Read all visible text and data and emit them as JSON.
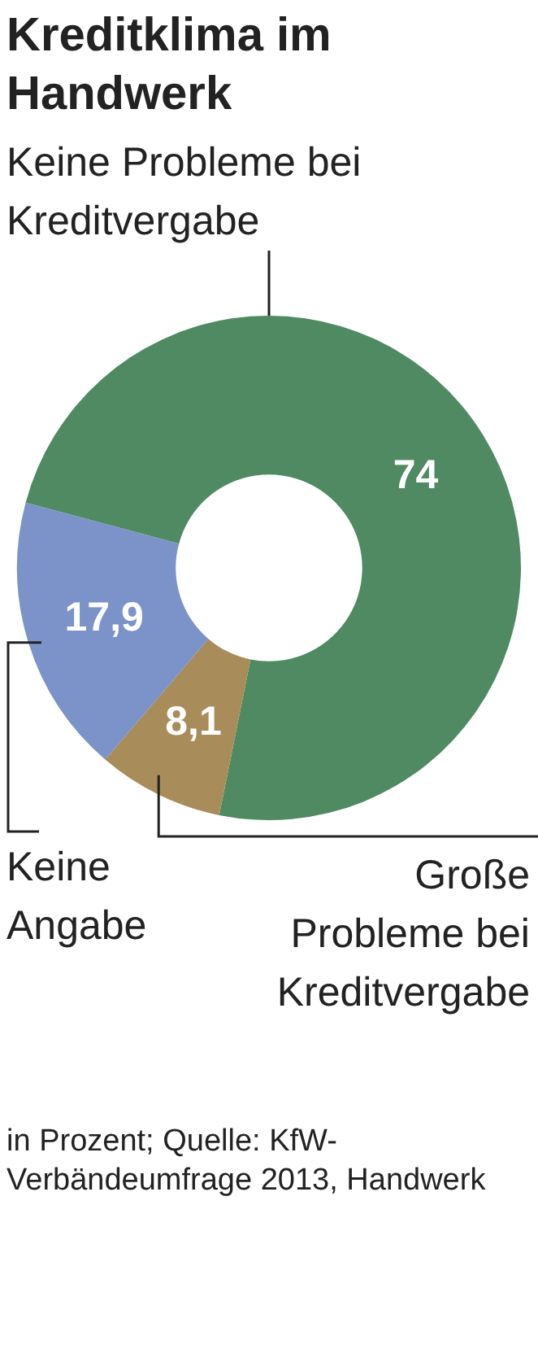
{
  "chart_data": {
    "type": "donut",
    "title": "Kreditklima im Handwerk",
    "categories": [
      "Keine Probleme bei Kreditvergabe",
      "Große Probleme bei Kreditvergabe",
      "Keine Angabe"
    ],
    "values": [
      74,
      8.1,
      17.9
    ],
    "value_labels": [
      "74",
      "8,1",
      "17,9"
    ],
    "colors": [
      "#4f8a63",
      "#a88c5a",
      "#7b93c9"
    ],
    "legend": false,
    "annotations": [
      "in Prozent; Quelle: KfW-Verbändeumfrage 2013, Handwerk"
    ]
  }
}
